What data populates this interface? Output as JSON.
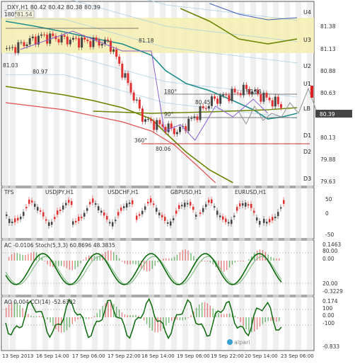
{
  "main": {
    "symbol_header": "_DXY,H1  80.42 80.42 80.38 80.39",
    "price_labels": [
      "U4",
      "U3",
      "U2",
      "U1",
      "LB",
      "D1",
      "D2",
      "D3"
    ],
    "right_ticks": [
      "81.38",
      "81.13",
      "80.88",
      "80.63",
      "80.38",
      "80.13",
      "79.88",
      "79.63"
    ],
    "last_price_tag": "80.39",
    "boxed_price": "81.54",
    "annotations": [
      "180°",
      "81.18",
      "81.03",
      "80.97",
      "180°",
      "80.45",
      "80.58",
      "90°",
      "360°",
      "80.06"
    ]
  },
  "corr": {
    "labels": [
      "TFS",
      "USDJPY,H1",
      "USDCHF,H1",
      "GBPUSD,H1",
      "EURUSD,H1"
    ],
    "ticks": [
      "50",
      "0",
      "-50"
    ]
  },
  "stoch": {
    "header": "AC -0.0106  Stoch(5,3,3) 60.8696 48.3835",
    "ticks": [
      "0.1463",
      "80.00",
      "0.00",
      "20.00",
      "-0.3229"
    ]
  },
  "cci": {
    "header": "AO 0.004  CCI(14) -52.6302",
    "ticks": [
      "0.174",
      "100",
      "0.00",
      "-100",
      "-0.833"
    ]
  },
  "x_axis": [
    "13 Sep 2013",
    "16 Sep 14:00",
    "17 Sep 06:00",
    "17 Sep 22:00",
    "18 Sep 14:00",
    "19 Sep 06:00",
    "19 Sep 22:00",
    "20 Sep 14:00",
    "23 Sep 06:00"
  ],
  "watermark": "alpari",
  "colors": {
    "yellow_zone": "#f5eeb0",
    "teal_ma": "#1f8c8c",
    "olive_ma": "#6b8400",
    "red_ma": "#e05050",
    "candle_up": "#444444",
    "candle_down": "#e03030",
    "stoch_line": "#0a6a0a"
  },
  "chart_data": {
    "type": "line",
    "title": "_DXY,H1",
    "x": [
      "13 Sep 2013",
      "16 Sep 14:00",
      "17 Sep 06:00",
      "17 Sep 22:00",
      "18 Sep 14:00",
      "19 Sep 06:00",
      "19 Sep 22:00",
      "20 Sep 14:00",
      "23 Sep 06:00"
    ],
    "ylim": [
      79.5,
      81.55
    ],
    "series": [
      {
        "name": "_DXY,H1",
        "values": [
          81.03,
          81.2,
          81.15,
          81.12,
          80.22,
          80.08,
          80.45,
          80.58,
          80.39
        ]
      }
    ],
    "levels": {
      "U4": 81.46,
      "U3": 81.13,
      "U2": 80.88,
      "U1": 80.63,
      "LB": 80.39,
      "D1": 80.13,
      "D2": 79.88,
      "D3": 79.63
    }
  }
}
